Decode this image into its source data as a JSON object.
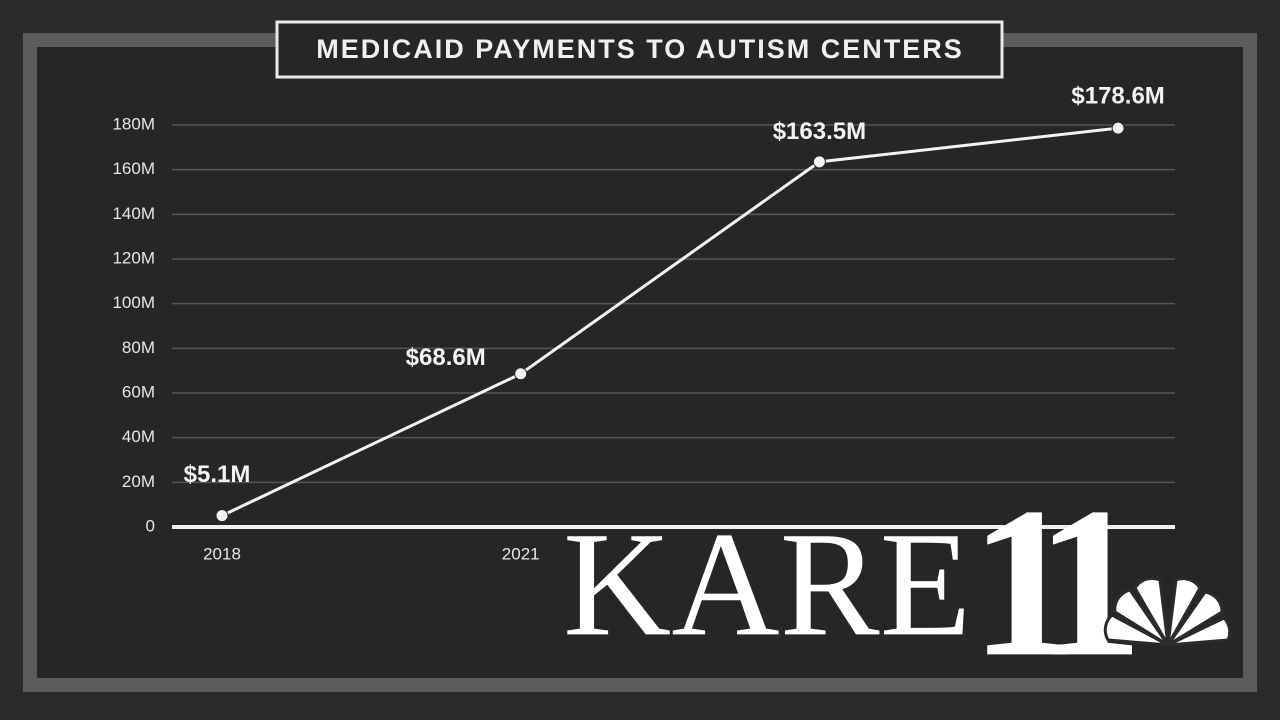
{
  "chart_data": {
    "type": "line",
    "title": "MEDICAID PAYMENTS TO AUTISM CENTERS",
    "categories": [
      "2018",
      "2021",
      null,
      null
    ],
    "series": [
      {
        "name": null,
        "color": "#f2f2f2",
        "values": [
          5.1,
          68.6,
          163.5,
          178.6
        ],
        "value_labels": [
          "$5.1M",
          "$68.6M",
          "$163.5M",
          "$178.6M"
        ]
      }
    ],
    "ylim": [
      0,
      180
    ],
    "yticks": [
      0,
      {
        "value": 20,
        "label": "20M"
      },
      {
        "value": 40,
        "label": "40M"
      },
      {
        "value": 60,
        "label": "60M"
      },
      {
        "value": 80,
        "label": "80M"
      },
      {
        "value": 100,
        "label": "100M"
      },
      {
        "value": 120,
        "label": "120M"
      },
      {
        "value": 140,
        "label": "140M"
      },
      {
        "value": 160,
        "label": "160M"
      },
      {
        "value": 180,
        "label": "180M"
      }
    ],
    "grid": true
  },
  "logo": {
    "name": "KARE",
    "number": "11"
  }
}
